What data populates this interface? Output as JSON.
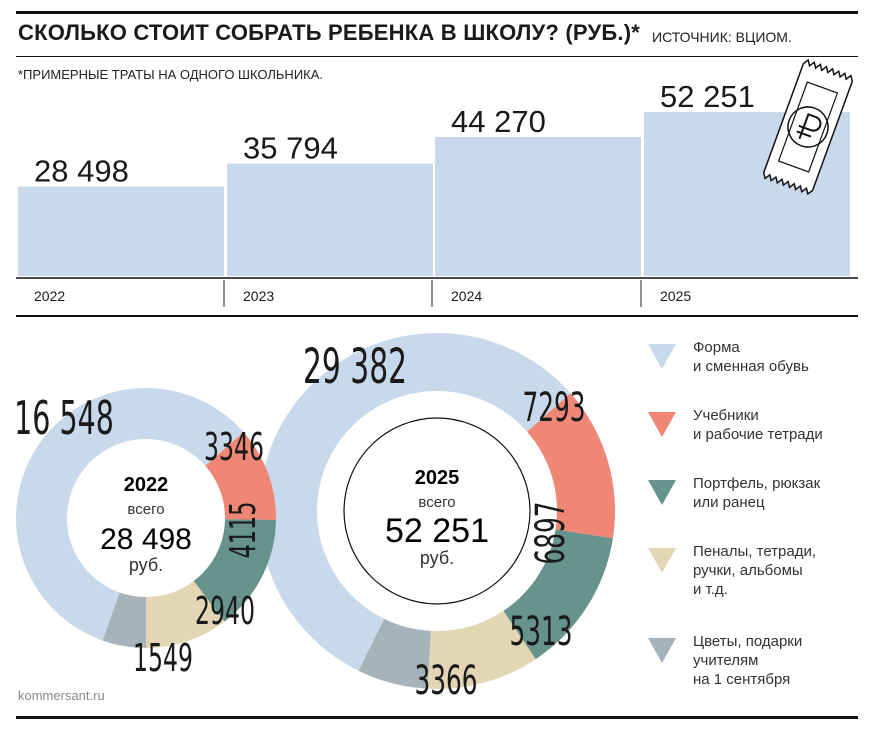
{
  "header": {
    "title": "СКОЛЬКО СТОИТ СОБРАТЬ РЕБЕНКА В ШКОЛУ? (РУБ.)*",
    "source": "ИСТОЧНИК: ВЦИОМ.",
    "footnote": "*ПРИМЕРНЫЕ ТРАТЫ НА ОДНОГО ШКОЛЬНИКА."
  },
  "footer": {
    "site": "kommersant.ru"
  },
  "colors": {
    "bar": "#c9d9ec",
    "forma": "#c9d9ec",
    "uchebniki": "#f08675",
    "portfel": "#66938b",
    "penaly": "#e3d6b5",
    "cvety": "#a7b3bb"
  },
  "icon": "ruble-receipt-icon",
  "chart_data": [
    {
      "type": "bar",
      "categories": [
        "2022",
        "2023",
        "2024",
        "2025"
      ],
      "values": [
        28498,
        35794,
        44270,
        52251
      ],
      "value_labels": [
        "28 498",
        "35 794",
        "44 270",
        "52 251"
      ],
      "ylim": [
        0,
        60000
      ]
    },
    {
      "type": "pie",
      "title": "2022",
      "center_caption": "всего",
      "center_value": "28 498",
      "center_unit": "руб.",
      "labels": [
        "Форма и сменная обувь",
        "Учебники и рабочие тетради",
        "Портфель, рюкзак или ранец",
        "Пеналы, тетради, ручки, альбомы и т.д.",
        "Цветы, подарки учителям на 1 сентября"
      ],
      "values": [
        16548,
        3346,
        4115,
        2940,
        1549
      ],
      "value_labels": [
        "16 548",
        "3346",
        "4115",
        "2940",
        "1549"
      ]
    },
    {
      "type": "pie",
      "title": "2025",
      "center_caption": "всего",
      "center_value": "52 251",
      "center_unit": "руб.",
      "labels": [
        "Форма и сменная обувь",
        "Учебники и рабочие тетради",
        "Портфель, рюкзак или ранец",
        "Пеналы, тетради, ручки, альбомы и т.д.",
        "Цветы, подарки учителям на 1 сентября"
      ],
      "values": [
        29382,
        7293,
        6897,
        5313,
        3366
      ],
      "value_labels": [
        "29 382",
        "7293",
        "6897",
        "5313",
        "3366"
      ]
    }
  ],
  "legend": [
    {
      "text": "Форма\nи сменная обувь",
      "color_key": "forma"
    },
    {
      "text": "Учебники\nи рабочие тетради",
      "color_key": "uchebniki"
    },
    {
      "text": "Портфель, рюкзак\nили ранец",
      "color_key": "portfel"
    },
    {
      "text": "Пеналы, тетради,\nручки, альбомы\nи т.д.",
      "color_key": "penaly"
    },
    {
      "text": "Цветы, подарки\nучителям\nна 1 сентября",
      "color_key": "cvety"
    }
  ]
}
